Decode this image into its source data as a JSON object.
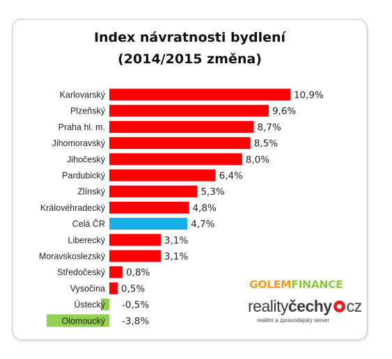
{
  "chart_data": {
    "type": "bar",
    "orientation": "horizontal",
    "title_line1": "Index návratnosti bydlení",
    "title_line2": "(2014/2015 změna)",
    "categories": [
      "Karlovarský",
      "Plzeňský",
      "Praha hl. m.",
      "Jihomoravský",
      "Jihočeský",
      "Pardubický",
      "Zlínský",
      "Královéhradecký",
      "Celá ČR",
      "Liberecký",
      "Moravskoslezský",
      "Středočeský",
      "Vysočina",
      "Ústecký",
      "Olomoucký"
    ],
    "values": [
      10.9,
      9.6,
      8.7,
      8.5,
      8.0,
      6.4,
      5.3,
      4.8,
      4.7,
      3.1,
      3.1,
      0.8,
      0.5,
      -0.5,
      -3.8
    ],
    "value_labels": [
      "10,9%",
      "9,6%",
      "8,7%",
      "8,5%",
      "8,0%",
      "6,4%",
      "5,3%",
      "4,8%",
      "4,7%",
      "3,1%",
      "3,1%",
      "0,8%",
      "0,5%",
      "-0,5%",
      "-3,8%"
    ],
    "grid": false,
    "legend": "none"
  },
  "colors": {
    "positive": "#ff0000",
    "national": "#18aee8",
    "negative": "#92d050",
    "label_text": "#222222"
  },
  "logos": {
    "golem_part1": "GOLEM",
    "golem_part2": "FINANCE",
    "rc_part1": "reality",
    "rc_part2": "čechy",
    "rc_part3": "cz",
    "rc_tagline": "realitní a zpravodajský server"
  }
}
